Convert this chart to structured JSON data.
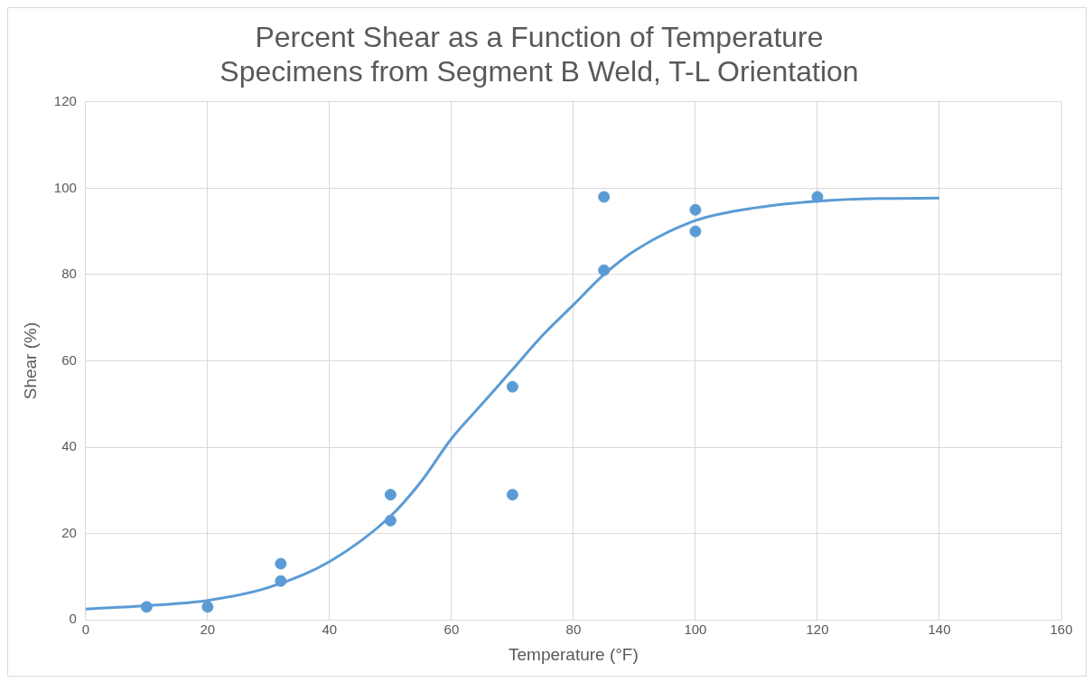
{
  "chart_data": {
    "type": "scatter",
    "title": "Percent Shear as a Function of Temperature",
    "subtitle": "Specimens from Segment B Weld, T-L Orientation",
    "xlabel": "Temperature (°F)",
    "ylabel": "Shear (%)",
    "xlim": [
      0,
      160
    ],
    "xticks": [
      0,
      20,
      40,
      60,
      80,
      100,
      120,
      140,
      160
    ],
    "ylim": [
      0,
      120
    ],
    "yticks": [
      0,
      20,
      40,
      60,
      80,
      100,
      120
    ],
    "grid": true,
    "legend": false,
    "marker": "circle",
    "series": [
      {
        "type": "scatter",
        "color": "#5b9bd5",
        "x": [
          10,
          20,
          32,
          32,
          50,
          50,
          70,
          70,
          85,
          85,
          100,
          100,
          120
        ],
        "values": [
          3,
          3,
          13,
          9,
          29,
          23,
          54,
          29,
          98,
          81,
          95,
          90,
          98
        ]
      },
      {
        "type": "line",
        "color": "#5b9bd5",
        "marker": "none",
        "line_style": "solid",
        "x": [
          0,
          10,
          20,
          30,
          40,
          50,
          55,
          60,
          65,
          70,
          75,
          80,
          85,
          90,
          100,
          110,
          120,
          130,
          140
        ],
        "values": [
          2.5,
          3.3,
          4.5,
          7.5,
          13.5,
          24,
          32,
          42,
          50,
          58,
          66,
          73,
          80,
          85.5,
          92.5,
          95.5,
          97,
          97.6,
          97.7
        ]
      }
    ]
  }
}
